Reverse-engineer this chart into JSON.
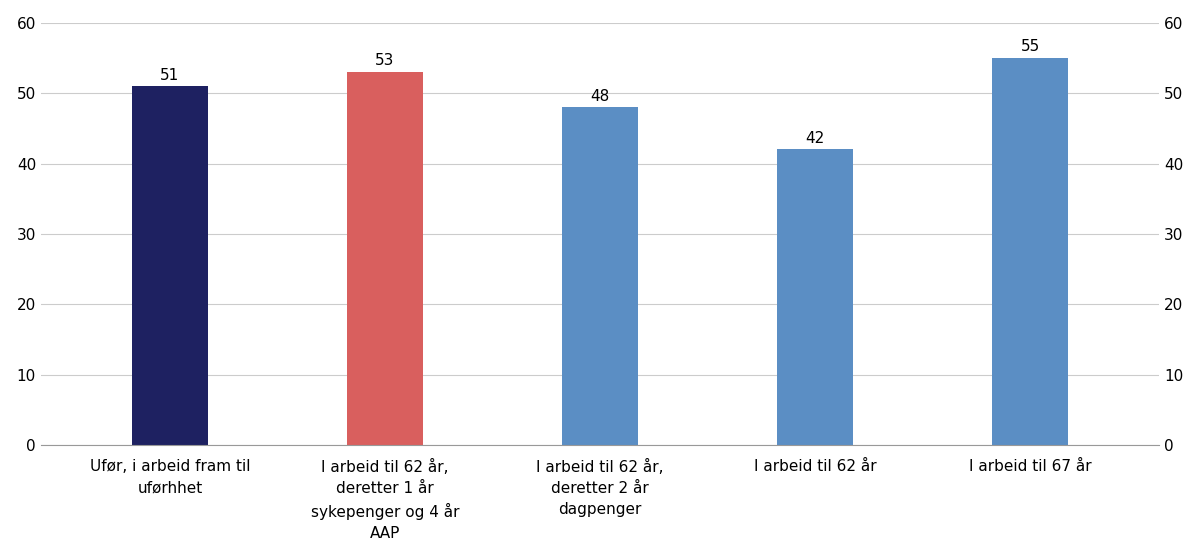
{
  "categories": [
    "Ufør, i arbeid fram til\nuførhhet",
    "I arbeid til 62 år,\nderetter 1 år\nsykepenger og 4 år\nAAP",
    "I arbeid til 62 år,\nderetter 2 år\ndagpenger",
    "I arbeid til 62 år",
    "I arbeid til 67 år"
  ],
  "values": [
    51,
    53,
    48,
    42,
    55
  ],
  "bar_colors": [
    "#1e2161",
    "#d95f5e",
    "#5b8ec4",
    "#5b8ec4",
    "#5b8ec4"
  ],
  "ylim": [
    0,
    60
  ],
  "yticks": [
    0,
    10,
    20,
    30,
    40,
    50,
    60
  ],
  "background_color": "#ffffff",
  "bar_width": 0.35,
  "tick_fontsize": 11,
  "value_fontsize": 11,
  "grid_color": "#cccccc",
  "bottom_spine_color": "#999999"
}
